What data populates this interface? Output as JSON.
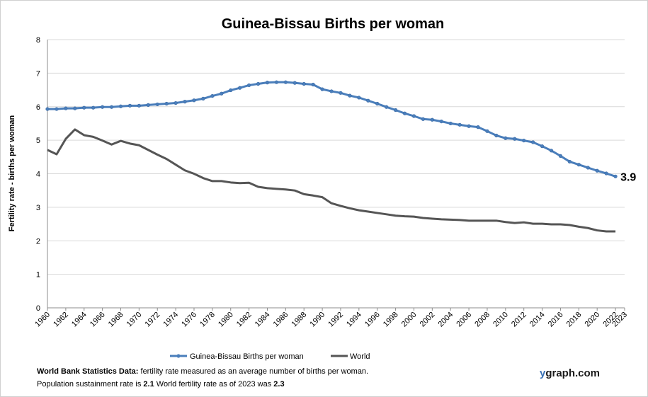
{
  "chart_data": {
    "type": "line",
    "title": "Guinea-Bissau Births per woman",
    "ylabel": "Fertility rate  - births per woman",
    "xlabel": "",
    "ylim": [
      0,
      8
    ],
    "yticks": [
      "0",
      "1",
      "2",
      "3",
      "4",
      "5",
      "6",
      "7",
      "8"
    ],
    "xticks": [
      "1960",
      "1962",
      "1964",
      "1966",
      "1968",
      "1970",
      "1972",
      "1974",
      "1976",
      "1978",
      "1980",
      "1982",
      "1984",
      "1986",
      "1988",
      "1990",
      "1992",
      "1994",
      "1996",
      "1998",
      "2000",
      "2002",
      "2004",
      "2006",
      "2008",
      "2010",
      "2012",
      "2014",
      "2016",
      "2018",
      "2020",
      "2022",
      "2023"
    ],
    "x": [
      1960,
      1961,
      1962,
      1963,
      1964,
      1965,
      1966,
      1967,
      1968,
      1969,
      1970,
      1971,
      1972,
      1973,
      1974,
      1975,
      1976,
      1977,
      1978,
      1979,
      1980,
      1981,
      1982,
      1983,
      1984,
      1985,
      1986,
      1987,
      1988,
      1989,
      1990,
      1991,
      1992,
      1993,
      1994,
      1995,
      1996,
      1997,
      1998,
      1999,
      2000,
      2001,
      2002,
      2003,
      2004,
      2005,
      2006,
      2007,
      2008,
      2009,
      2010,
      2011,
      2012,
      2013,
      2014,
      2015,
      2016,
      2017,
      2018,
      2019,
      2020,
      2021,
      2022
    ],
    "grid": true,
    "legend_position": "bottom",
    "end_label": "3.9",
    "series": [
      {
        "name": "Guinea-Bissau Births per woman",
        "color": "#4a7ebb",
        "markers": true,
        "values": [
          5.93,
          5.93,
          5.95,
          5.95,
          5.97,
          5.97,
          5.99,
          5.99,
          6.01,
          6.03,
          6.03,
          6.05,
          6.07,
          6.09,
          6.11,
          6.15,
          6.19,
          6.24,
          6.32,
          6.39,
          6.49,
          6.56,
          6.64,
          6.68,
          6.72,
          6.73,
          6.73,
          6.71,
          6.68,
          6.66,
          6.52,
          6.46,
          6.41,
          6.33,
          6.27,
          6.18,
          6.09,
          5.99,
          5.9,
          5.8,
          5.72,
          5.63,
          5.61,
          5.56,
          5.5,
          5.46,
          5.42,
          5.39,
          5.27,
          5.14,
          5.06,
          5.04,
          4.99,
          4.94,
          4.82,
          4.69,
          4.53,
          4.36,
          4.27,
          4.18,
          4.09,
          4.01,
          3.92
        ]
      },
      {
        "name": "World",
        "color": "#555555",
        "markers": false,
        "values": [
          4.71,
          4.58,
          5.04,
          5.32,
          5.15,
          5.1,
          4.99,
          4.87,
          4.98,
          4.9,
          4.85,
          4.71,
          4.57,
          4.44,
          4.27,
          4.1,
          4.0,
          3.87,
          3.78,
          3.78,
          3.74,
          3.72,
          3.73,
          3.61,
          3.57,
          3.55,
          3.53,
          3.5,
          3.39,
          3.35,
          3.3,
          3.12,
          3.04,
          2.97,
          2.91,
          2.87,
          2.83,
          2.79,
          2.75,
          2.73,
          2.72,
          2.68,
          2.66,
          2.64,
          2.63,
          2.62,
          2.6,
          2.6,
          2.6,
          2.6,
          2.56,
          2.53,
          2.55,
          2.51,
          2.51,
          2.49,
          2.49,
          2.47,
          2.42,
          2.38,
          2.31,
          2.28,
          2.28
        ]
      }
    ]
  },
  "footer": {
    "line1_bold": "World Bank Statistics Data:",
    "line1_text": " fertility rate measured as an average number  of births per woman.",
    "line2_text1": "Population sustainment rate is ",
    "line2_bold1": "2.1",
    "line2_text2": "    World fertility rate as of 2023 was ",
    "line2_bold2": "2.3"
  },
  "brand": {
    "y": "y",
    "rest": "graph.com"
  }
}
